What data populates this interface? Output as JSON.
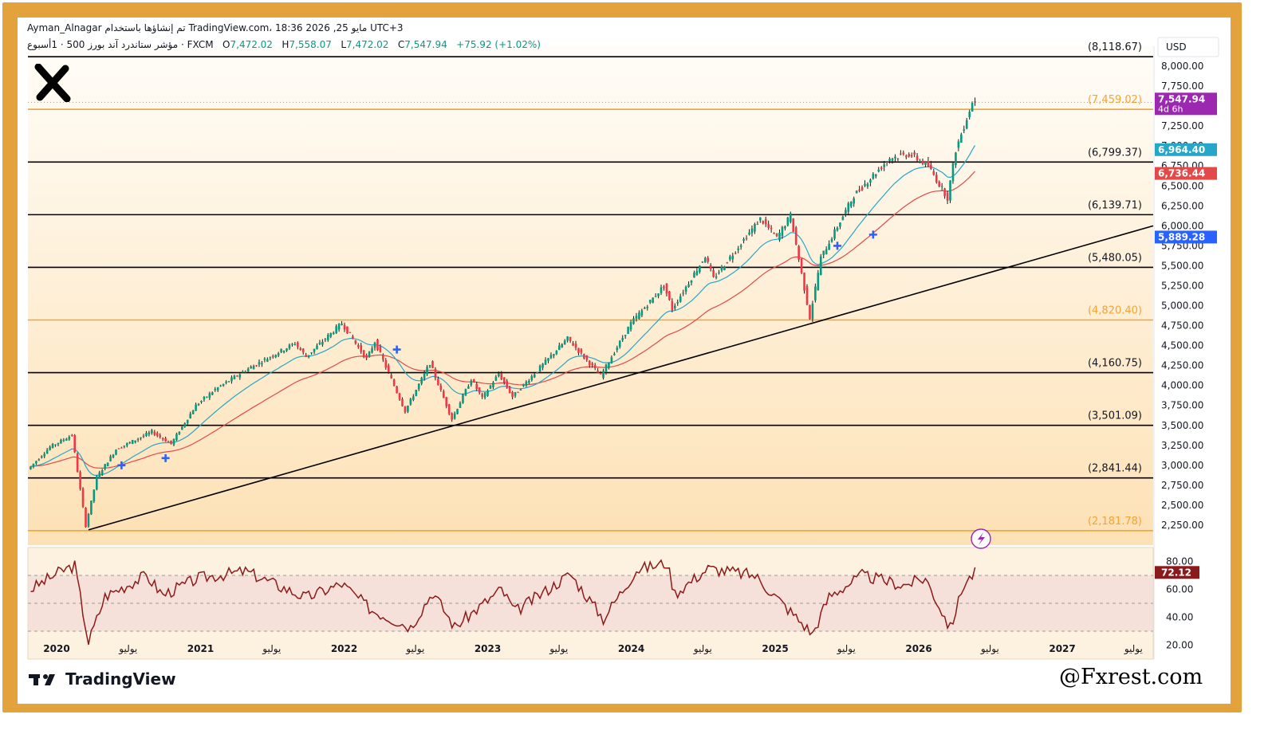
{
  "header": {
    "line1": "Ayman_Alnagar تم إنشاؤها باستخدام TradingView.com، 18:36 2026 ,25 مايو UTC+3",
    "symbol": "مؤشر ستاندرد آند بورز 500 · 1أسبوع · FXCM",
    "o_label": "O",
    "o_value": "7,472.02",
    "h_label": "H",
    "h_value": "7,558.07",
    "l_label": "L",
    "l_value": "7,472.02",
    "c_label": "C",
    "c_value": "7,547.94",
    "change": "+75.92 (+1.02%)"
  },
  "currency": "USD",
  "branding": {
    "tradingview": "TradingView",
    "watermark": "@Fxrest.com"
  },
  "colors": {
    "frame": "#e3a23c",
    "up": "#089981",
    "down": "#f23645",
    "ema_fast": "#26a6c8",
    "ema_slow": "#e24a4a",
    "rsi": "#8b1a1a",
    "fib_orange": "#f7a233",
    "trend": "#000000"
  },
  "chart_data": {
    "type": "line",
    "subtype": "candlestick",
    "y_scale": "linear",
    "ylim": [
      2000,
      8250
    ],
    "y_ticks": [
      "2,250.00",
      "2,500.00",
      "2,750.00",
      "3,000.00",
      "3,250.00",
      "3,500.00",
      "3,750.00",
      "4,000.00",
      "4,250.00",
      "4,500.00",
      "4,750.00",
      "5,000.00",
      "5,250.00",
      "5,500.00",
      "5,750.00",
      "6,000.00",
      "6,250.00",
      "6,500.00",
      "6,750.00",
      "7,000.00",
      "7,250.00",
      "7,500.00",
      "7,750.00",
      "8,000.00"
    ],
    "x_labels": [
      "2020",
      "يوليو",
      "2021",
      "يوليو",
      "2022",
      "يوليو",
      "2023",
      "يوليو",
      "2024",
      "يوليو",
      "2025",
      "يوليو",
      "2026",
      "يوليو",
      "2027",
      "يوليو"
    ],
    "x_ticks": [
      "2020-01-01",
      "2020-07-01",
      "2021-01-01",
      "2021-07-01",
      "2022-01-01",
      "2022-07-01",
      "2023-01-01",
      "2023-07-01",
      "2024-01-01",
      "2024-07-01",
      "2025-01-01",
      "2025-07-01",
      "2026-01-01",
      "2026-07-01",
      "2027-01-01",
      "2027-07-01"
    ],
    "xlim": [
      "2019-10-20",
      "2027-08-20"
    ],
    "price_path": [
      [
        "2019-10-27",
        2950
      ],
      [
        "2019-12-22",
        3230
      ],
      [
        "2020-02-16",
        3380
      ],
      [
        "2020-03-22",
        2240
      ],
      [
        "2020-04-19",
        2850
      ],
      [
        "2020-06-07",
        3200
      ],
      [
        "2020-09-06",
        3420
      ],
      [
        "2020-10-25",
        3270
      ],
      [
        "2020-12-27",
        3750
      ],
      [
        "2021-02-14",
        3950
      ],
      [
        "2021-05-02",
        4190
      ],
      [
        "2021-09-05",
        4530
      ],
      [
        "2021-10-03",
        4360
      ],
      [
        "2022-01-02",
        4780
      ],
      [
        "2022-03-06",
        4330
      ],
      [
        "2022-03-27",
        4550
      ],
      [
        "2022-06-12",
        3680
      ],
      [
        "2022-08-14",
        4280
      ],
      [
        "2022-10-09",
        3580
      ],
      [
        "2022-11-27",
        4080
      ],
      [
        "2022-12-25",
        3840
      ],
      [
        "2023-02-05",
        4150
      ],
      [
        "2023-03-12",
        3860
      ],
      [
        "2023-07-30",
        4590
      ],
      [
        "2023-10-22",
        4120
      ],
      [
        "2024-01-07",
        4780
      ],
      [
        "2024-03-31",
        5250
      ],
      [
        "2024-04-21",
        4960
      ],
      [
        "2024-07-14",
        5620
      ],
      [
        "2024-08-04",
        5340
      ],
      [
        "2024-12-01",
        6090
      ],
      [
        "2025-01-12",
        5850
      ],
      [
        "2025-02-16",
        6130
      ],
      [
        "2025-04-06",
        4850
      ],
      [
        "2025-05-04",
        5600
      ],
      [
        "2025-07-27",
        6380
      ],
      [
        "2025-10-26",
        6850
      ],
      [
        "2025-12-14",
        6900
      ],
      [
        "2026-02-01",
        6750
      ],
      [
        "2026-03-22",
        6350
      ],
      [
        "2026-04-12",
        6950
      ],
      [
        "2026-05-24",
        7547.94
      ]
    ],
    "last_price": "7,547.94",
    "countdown": "4d 6h",
    "ema_fast_value": "6,964.40",
    "ema_slow_value": "6,736.44",
    "trend_price": "5,889.28",
    "fib_levels": [
      {
        "label": "(8,118.67)",
        "value": 8118.67,
        "color": "black"
      },
      {
        "label": "(7,459.02)",
        "value": 7459.02,
        "color": "orange"
      },
      {
        "label": "(6,799.37)",
        "value": 6799.37,
        "color": "black"
      },
      {
        "label": "(6,139.71)",
        "value": 6139.71,
        "color": "black"
      },
      {
        "label": "(5,480.05)",
        "value": 5480.05,
        "color": "black"
      },
      {
        "label": "(4,820.40)",
        "value": 4820.4,
        "color": "orange"
      },
      {
        "label": "(4,160.75)",
        "value": 4160.75,
        "color": "black"
      },
      {
        "label": "(3,501.09)",
        "value": 3501.09,
        "color": "black"
      },
      {
        "label": "(2,841.44)",
        "value": 2841.44,
        "color": "black"
      },
      {
        "label": "(2,181.78)",
        "value": 2181.78,
        "color": "orange"
      }
    ],
    "trendline": [
      [
        "2020-03-22",
        2191
      ],
      [
        "2027-08-20",
        6000
      ]
    ],
    "cross_markers": [
      [
        "2020-06-14",
        3000
      ],
      [
        "2020-10-04",
        3090
      ],
      [
        "2022-05-15",
        4450
      ],
      [
        "2025-06-08",
        5750
      ],
      [
        "2025-09-07",
        5890
      ]
    ],
    "rsi": {
      "ylim": [
        10,
        90
      ],
      "ticks": [
        "20.00",
        "40.00",
        "60.00",
        "80.00"
      ],
      "levels": [
        70,
        50,
        30
      ],
      "current": "72.12",
      "path": [
        [
          "2019-10-27",
          60
        ],
        [
          "2020-01-12",
          73
        ],
        [
          "2020-02-16",
          77
        ],
        [
          "2020-03-22",
          22
        ],
        [
          "2020-05-03",
          55
        ],
        [
          "2020-08-16",
          70
        ],
        [
          "2020-09-27",
          56
        ],
        [
          "2020-12-27",
          68
        ],
        [
          "2021-04-25",
          73
        ],
        [
          "2021-09-26",
          54
        ],
        [
          "2021-12-26",
          64
        ],
        [
          "2022-03-13",
          45
        ],
        [
          "2022-06-19",
          33
        ],
        [
          "2022-08-14",
          58
        ],
        [
          "2022-10-09",
          33
        ],
        [
          "2023-02-05",
          60
        ],
        [
          "2023-03-12",
          44
        ],
        [
          "2023-07-30",
          71
        ],
        [
          "2023-10-22",
          39
        ],
        [
          "2024-01-14",
          74
        ],
        [
          "2024-03-31",
          79
        ],
        [
          "2024-04-21",
          57
        ],
        [
          "2024-07-14",
          75
        ],
        [
          "2024-11-10",
          70
        ],
        [
          "2025-04-06",
          28
        ],
        [
          "2025-05-18",
          55
        ],
        [
          "2025-08-10",
          70
        ],
        [
          "2025-11-23",
          63
        ],
        [
          "2026-01-18",
          68
        ],
        [
          "2026-03-22",
          32
        ],
        [
          "2026-04-26",
          64
        ],
        [
          "2026-05-24",
          72
        ]
      ]
    }
  }
}
